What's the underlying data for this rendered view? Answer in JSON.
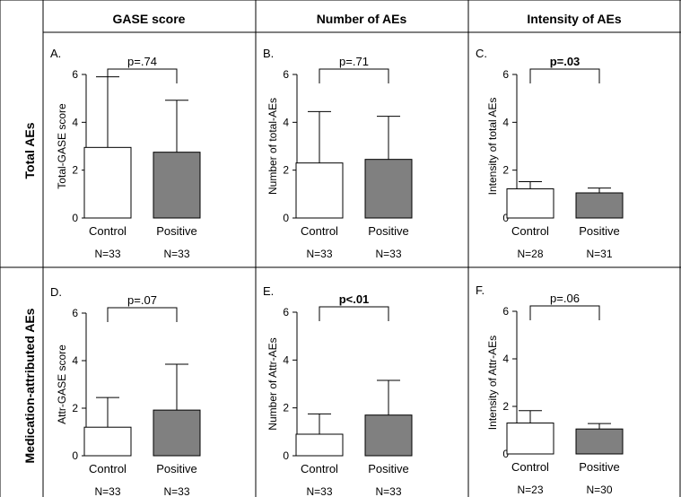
{
  "column_headers": [
    "GASE score",
    "Number of AEs",
    "Intensity of AEs"
  ],
  "row_headers": [
    "Total AEs",
    "Medication-attributed AEs"
  ],
  "colors": {
    "control_bar": "#ffffff",
    "positive_bar": "#808080",
    "stroke": "#000000"
  },
  "chart_data": [
    {
      "type": "bar",
      "panel": "A.",
      "ylabel": "Total-GASE score",
      "categories": [
        "Control",
        "Positive"
      ],
      "n_labels": [
        "N=33",
        "N=33"
      ],
      "values": [
        2.95,
        2.75
      ],
      "error_upper": [
        5.9,
        4.92
      ],
      "ylim": [
        0,
        6
      ],
      "yticks": [
        "0",
        "2",
        "4",
        "6"
      ],
      "p_value": "p=.74",
      "p_bold": false
    },
    {
      "type": "bar",
      "panel": "B.",
      "ylabel": "Number of total-AEs",
      "categories": [
        "Control",
        "Positive"
      ],
      "n_labels": [
        "N=33",
        "N=33"
      ],
      "values": [
        2.3,
        2.45
      ],
      "error_upper": [
        4.45,
        4.25
      ],
      "ylim": [
        0,
        6
      ],
      "yticks": [
        "0",
        "2",
        "4",
        "6"
      ],
      "p_value": "p=.71",
      "p_bold": false
    },
    {
      "type": "bar",
      "panel": "C.",
      "ylabel": "Intensity of total AEs",
      "categories": [
        "Control",
        "Positive"
      ],
      "n_labels": [
        "N=28",
        "N=31"
      ],
      "values": [
        1.22,
        1.05
      ],
      "error_upper": [
        1.52,
        1.25
      ],
      "ylim": [
        0,
        6
      ],
      "yticks": [
        "0",
        "2",
        "4",
        "6"
      ],
      "p_value": "p=.03",
      "p_bold": true
    },
    {
      "type": "bar",
      "panel": "D.",
      "ylabel": "Attr-GASE score",
      "categories": [
        "Control",
        "Positive"
      ],
      "n_labels": [
        "N=33",
        "N=33"
      ],
      "values": [
        1.2,
        1.92
      ],
      "error_upper": [
        2.45,
        3.85
      ],
      "ylim": [
        0,
        6
      ],
      "yticks": [
        "0",
        "2",
        "4",
        "6"
      ],
      "p_value": "p=.07",
      "p_bold": false
    },
    {
      "type": "bar",
      "panel": "E.",
      "ylabel": "Number of Attr-AEs",
      "categories": [
        "Control",
        "Positive"
      ],
      "n_labels": [
        "N=33",
        "N=33"
      ],
      "values": [
        0.9,
        1.7
      ],
      "error_upper": [
        1.75,
        3.15
      ],
      "ylim": [
        0,
        6
      ],
      "yticks": [
        "0",
        "2",
        "4",
        "6"
      ],
      "p_value": "p<.01",
      "p_bold": true
    },
    {
      "type": "bar",
      "panel": "F.",
      "ylabel": "Intensity of Attr-AEs",
      "categories": [
        "Control",
        "Positive"
      ],
      "n_labels": [
        "N=23",
        "N=30"
      ],
      "values": [
        1.3,
        1.05
      ],
      "error_upper": [
        1.82,
        1.28
      ],
      "ylim": [
        0,
        6
      ],
      "yticks": [
        "0",
        "2",
        "4",
        "6"
      ],
      "p_value": "p=.06",
      "p_bold": false
    }
  ]
}
